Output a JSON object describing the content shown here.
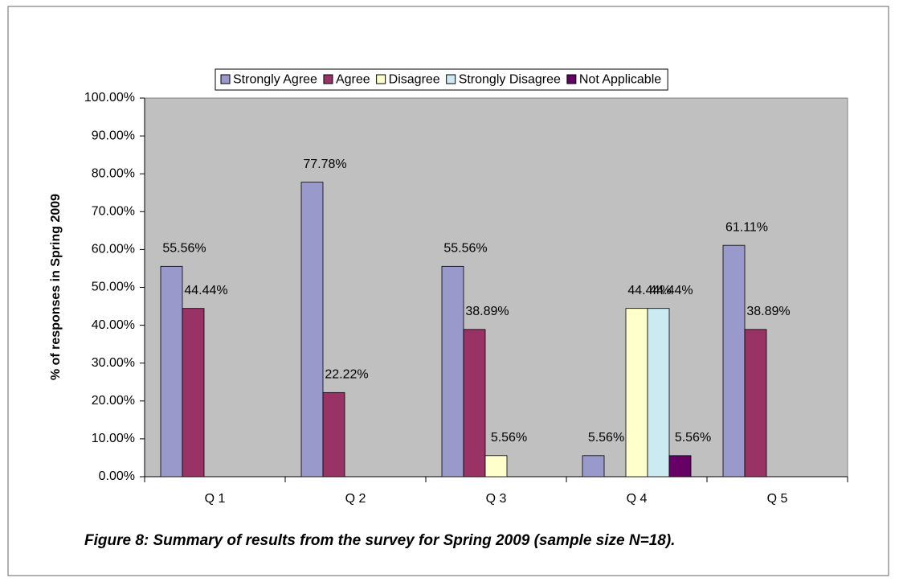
{
  "chart_data": {
    "type": "bar",
    "caption": "Figure 8: Summary of results from the survey for Spring 2009 (sample size N=18).",
    "y_label": "% of responses in Spring 2009",
    "categories": [
      "Q 1",
      "Q 2",
      "Q 3",
      "Q 4",
      "Q 5"
    ],
    "series": [
      {
        "name": "Strongly Agree",
        "color": "#9999cc",
        "values": [
          55.56,
          77.78,
          55.56,
          5.56,
          61.11
        ],
        "value_labels": [
          "55.56%",
          "77.78%",
          "55.56%",
          "5.56%",
          "61.11%"
        ]
      },
      {
        "name": "Agree",
        "color": "#993366",
        "values": [
          44.44,
          22.22,
          38.89,
          null,
          38.89
        ],
        "value_labels": [
          "44.44%",
          "22.22%",
          "38.89%",
          null,
          "38.89%"
        ]
      },
      {
        "name": "Disagree",
        "color": "#ffffcc",
        "values": [
          null,
          null,
          5.56,
          44.44,
          null
        ],
        "value_labels": [
          null,
          null,
          "5.56%",
          "44.44%",
          null
        ]
      },
      {
        "name": "Strongly Disagree",
        "color": "#cceaf2",
        "values": [
          null,
          null,
          null,
          44.44,
          null
        ],
        "value_labels": [
          null,
          null,
          null,
          "44.44%",
          null
        ]
      },
      {
        "name": "Not Applicable",
        "color": "#660066",
        "values": [
          null,
          null,
          null,
          5.56,
          null
        ],
        "value_labels": [
          null,
          null,
          null,
          "5.56%",
          null
        ]
      }
    ],
    "ylim": [
      0,
      100
    ],
    "yticks": [
      {
        "value": 0,
        "label": "0.00%"
      },
      {
        "value": 10,
        "label": "10.00%"
      },
      {
        "value": 20,
        "label": "20.00%"
      },
      {
        "value": 30,
        "label": "30.00%"
      },
      {
        "value": 40,
        "label": "40.00%"
      },
      {
        "value": 50,
        "label": "50.00%"
      },
      {
        "value": 60,
        "label": "60.00%"
      },
      {
        "value": 70,
        "label": "70.00%"
      },
      {
        "value": 80,
        "label": "80.00%"
      },
      {
        "value": 90,
        "label": "90.00%"
      },
      {
        "value": 100,
        "label": "100.00%"
      }
    ],
    "plot_background": "#c0c0c0",
    "legend": "top"
  }
}
